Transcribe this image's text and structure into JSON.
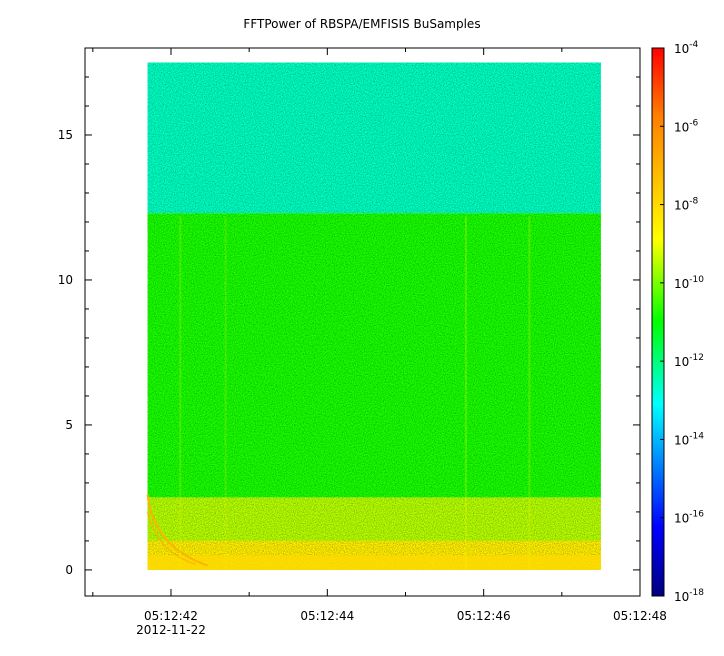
{
  "chart_data": {
    "type": "heatmap",
    "title": "FFTPower of RBSPA/EMFISIS  BuSamples",
    "xlabel": "",
    "ylabel": "",
    "x_axis": {
      "type": "time",
      "start": "05:12:40.9",
      "end": "05:12:48.0",
      "data_start": "05:12:41.7",
      "data_end": "05:12:47.5",
      "major_ticks": [
        "05:12:42",
        "05:12:44",
        "05:12:46",
        "05:12:48"
      ],
      "date_label": "2012-11-22"
    },
    "y_axis": {
      "ylim": [
        -0.9,
        18.0
      ],
      "data_range": [
        0,
        17.5
      ],
      "ticks": [
        0,
        5,
        10,
        15
      ]
    },
    "colorbar": {
      "scale": "log",
      "range": [
        1e-18,
        0.0001
      ],
      "tick_base": "10",
      "tick_exponents": [
        "-4",
        "-6",
        "-8",
        "-10",
        "-12",
        "-14",
        "-16",
        "-18"
      ],
      "colormap": "rainbow"
    },
    "bands": [
      {
        "y_from": 12.3,
        "y_to": 17.5,
        "log_power": -12.6
      },
      {
        "y_from": 2.5,
        "y_to": 12.3,
        "log_power": -10.8
      },
      {
        "y_from": 1.0,
        "y_to": 2.5,
        "log_power": -9.5
      },
      {
        "y_from": 0,
        "y_to": 1.0,
        "log_power": -8.5
      }
    ],
    "features": [
      {
        "name": "whistler-traces",
        "log_power": -7
      }
    ]
  }
}
